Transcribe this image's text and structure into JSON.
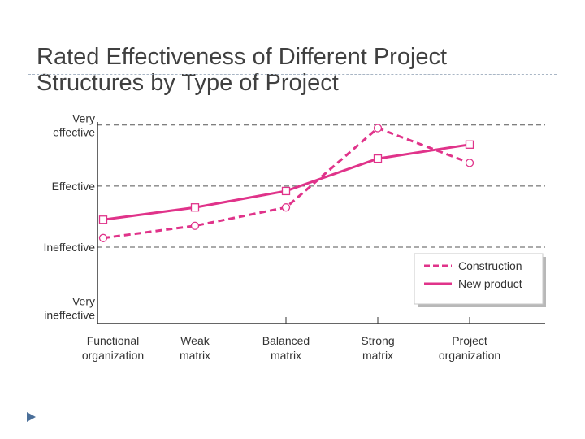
{
  "slide": {
    "title_line1": "Rated Effectiveness of Different Project",
    "title_line2": "Structures by Type of Project"
  },
  "colors": {
    "series": "#e0338a",
    "title": "#404040",
    "rule": "#a9b6c5",
    "bullet": "#4a6f99"
  },
  "chart_data": {
    "type": "line",
    "title": "Rated Effectiveness of Different Project Structures by Type of Project",
    "xlabel": "",
    "ylabel": "",
    "categories": [
      [
        "Functional",
        "organization"
      ],
      [
        "Weak",
        "matrix"
      ],
      [
        "Balanced",
        "matrix"
      ],
      [
        "Strong",
        "matrix"
      ],
      [
        "Project",
        "organization"
      ]
    ],
    "y_levels": [
      {
        "value": 1,
        "lines": [
          "Very",
          "ineffective"
        ]
      },
      {
        "value": 2,
        "lines": [
          "Ineffective"
        ]
      },
      {
        "value": 3,
        "lines": [
          "Effective"
        ]
      },
      {
        "value": 4,
        "lines": [
          "Very",
          "effective"
        ]
      }
    ],
    "ylim": [
      0.75,
      4.05
    ],
    "gridlines": [
      2,
      3,
      4
    ],
    "legend_position": "bottom-right",
    "series": [
      {
        "name": "Construction",
        "style": "dashed",
        "marker": "circle",
        "values": [
          2.15,
          2.35,
          2.65,
          3.95,
          3.38
        ]
      },
      {
        "name": "New product",
        "style": "solid",
        "marker": "square",
        "values": [
          2.45,
          2.65,
          2.92,
          3.45,
          3.68
        ]
      }
    ]
  }
}
